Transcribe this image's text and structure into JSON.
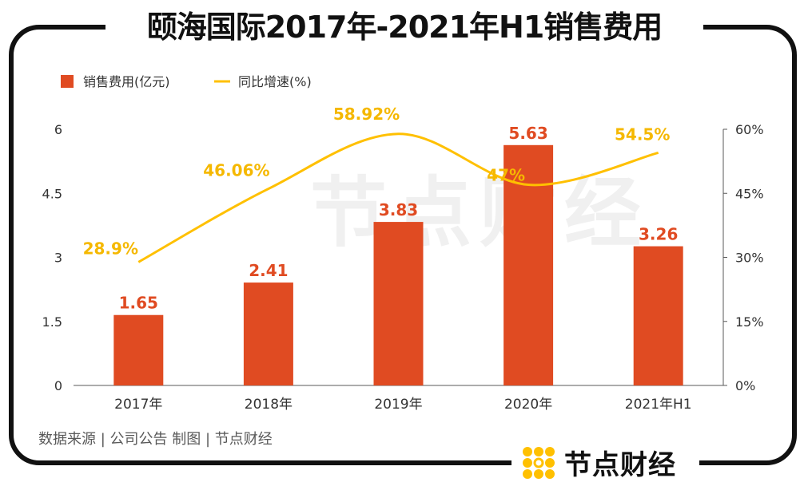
{
  "title": "颐海国际2017年-2021年H1销售费用",
  "source": "数据来源 | 公司公告  制图 | 节点财经",
  "brand": "节点财经",
  "watermark": "节点财经",
  "colors": {
    "bar": "#E04B22",
    "line": "#FFC000",
    "line_label": "#F5B800",
    "bar_label": "#E04B22",
    "frame": "#111111"
  },
  "chart_data": {
    "type": "bar",
    "title": "颐海国际2017年-2021年H1销售费用",
    "categories": [
      "2017年",
      "2018年",
      "2019年",
      "2020年",
      "2021年H1"
    ],
    "series": [
      {
        "name": "销售费用(亿元)",
        "type": "bar",
        "axis": "left",
        "values": [
          1.65,
          2.41,
          3.83,
          5.63,
          3.26
        ],
        "labels": [
          "1.65",
          "2.41",
          "3.83",
          "5.63",
          "3.26"
        ]
      },
      {
        "name": "同比增速(%)",
        "type": "line",
        "axis": "right",
        "values": [
          28.9,
          46.06,
          58.92,
          47,
          54.5
        ],
        "labels": [
          "28.9%",
          "46.06%",
          "58.92%",
          "47%",
          "54.5%"
        ]
      }
    ],
    "y_left": {
      "min": 0,
      "max": 6,
      "ticks": [
        "0",
        "1.5",
        "3",
        "4.5",
        "6"
      ]
    },
    "y_right": {
      "min": 0,
      "max": 60,
      "ticks": [
        "0%",
        "15%",
        "30%",
        "45%",
        "60%"
      ]
    },
    "legend": [
      {
        "label": "销售费用(亿元)",
        "kind": "square"
      },
      {
        "label": "同比增速(%)",
        "kind": "line"
      }
    ],
    "legend_position": "top-left",
    "grid": false
  }
}
